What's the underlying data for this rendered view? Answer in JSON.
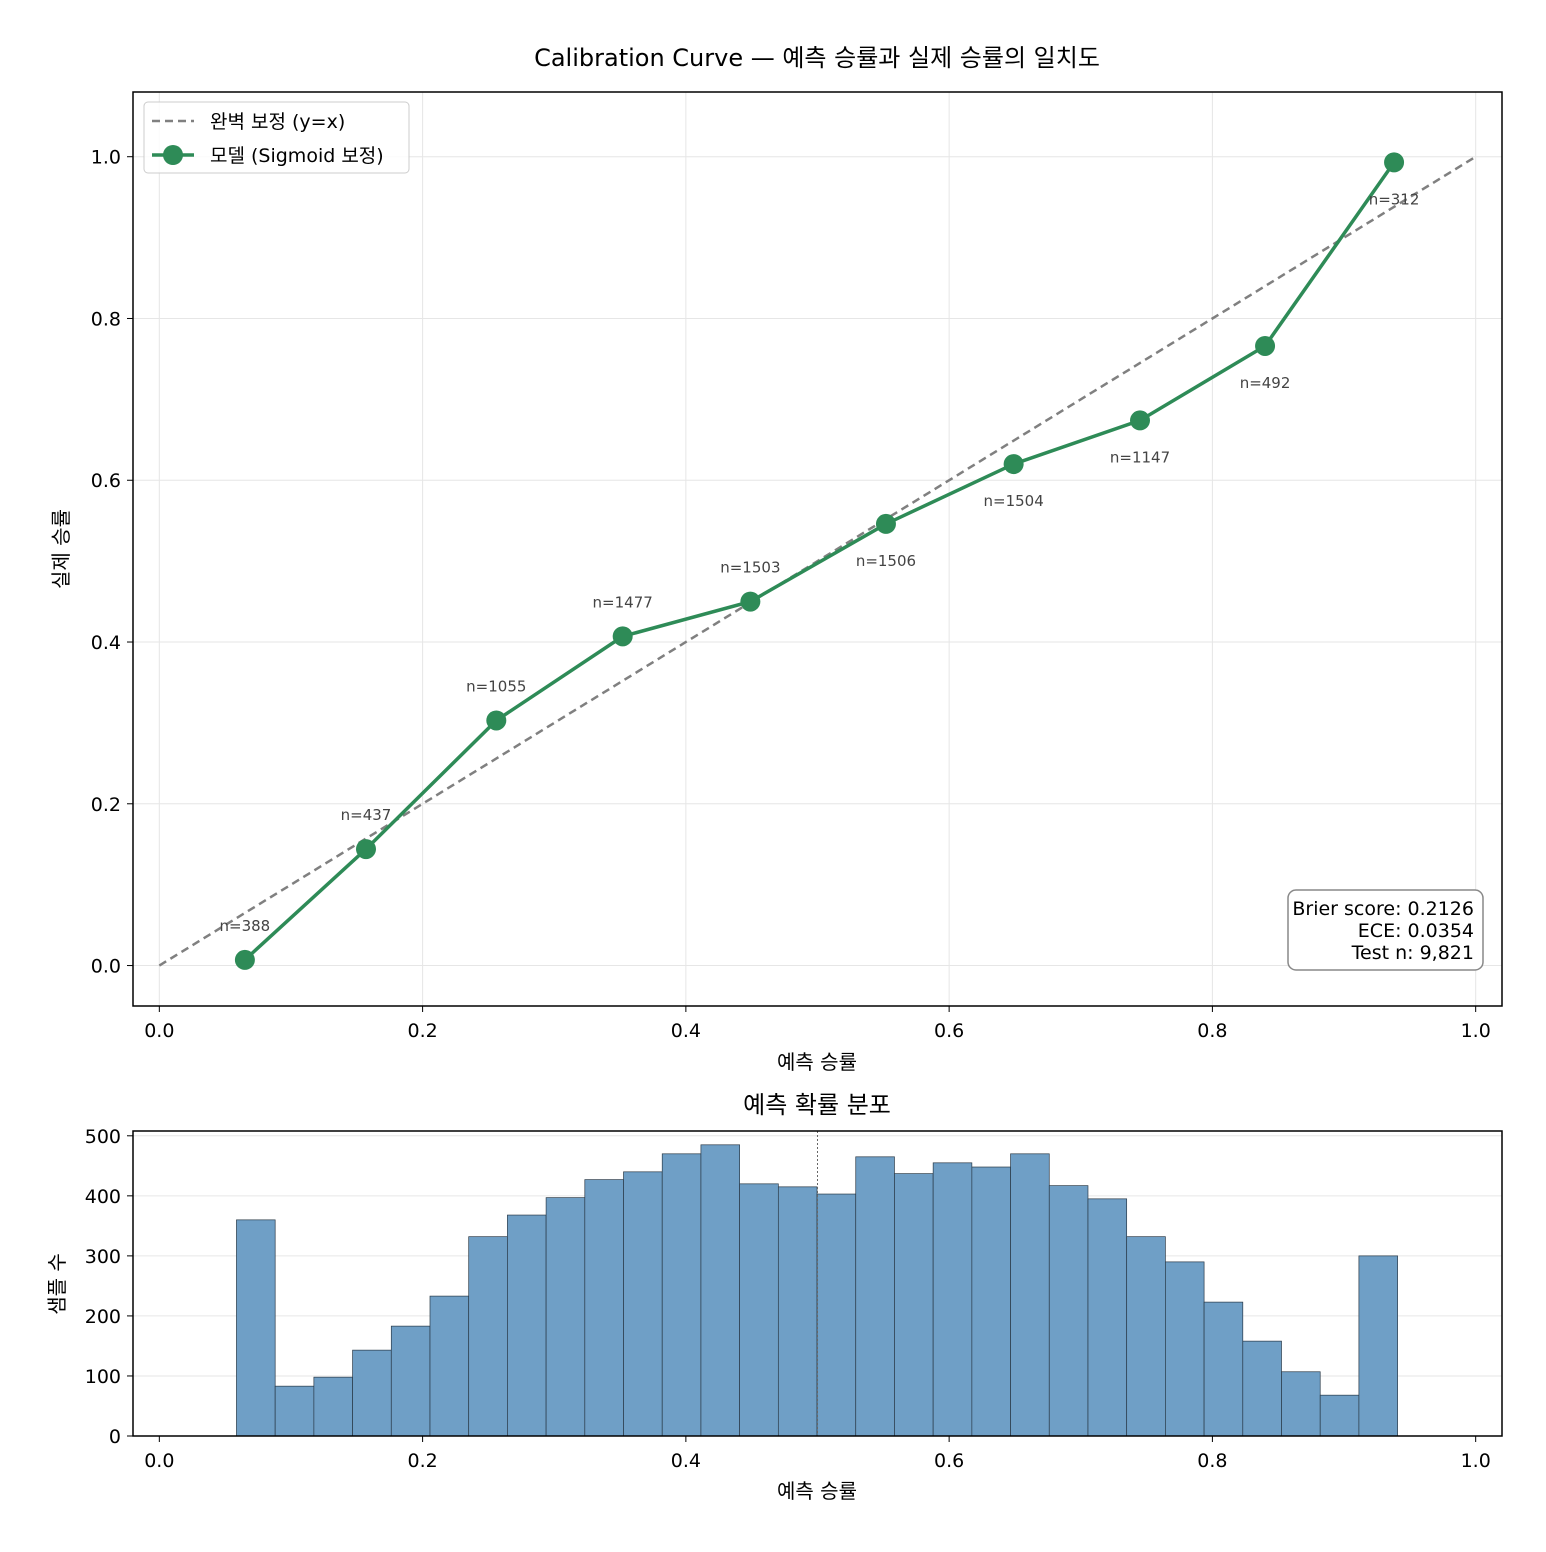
{
  "chart_data": [
    {
      "type": "line",
      "title": "Calibration Curve — 예측 승률과 실제 승률의 일치도",
      "xlabel": "예측 승률",
      "ylabel": "실제 승률",
      "xlim": [
        -0.02,
        1.02
      ],
      "ylim": [
        -0.05,
        1.08
      ],
      "xticks": [
        "0.0",
        "0.2",
        "0.4",
        "0.6",
        "0.8",
        "1.0"
      ],
      "yticks": [
        "0.0",
        "0.2",
        "0.4",
        "0.6",
        "0.8",
        "1.0"
      ],
      "grid": true,
      "legend_position": "top-left",
      "series": [
        {
          "name": "완벽 보정 (y=x)",
          "style": "dashed",
          "color": "#808080",
          "x": [
            0,
            1
          ],
          "y": [
            0,
            1
          ]
        },
        {
          "name": "모델 (Sigmoid 보정)",
          "style": "solid-marker",
          "color": "#2e8b57",
          "x": [
            0.065,
            0.157,
            0.256,
            0.352,
            0.449,
            0.552,
            0.649,
            0.745,
            0.84,
            0.938
          ],
          "y": [
            0.007,
            0.144,
            0.303,
            0.407,
            0.45,
            0.546,
            0.62,
            0.674,
            0.766,
            0.993
          ],
          "labels": [
            "n=388",
            "n=437",
            "n=1055",
            "n=1477",
            "n=1503",
            "n=1506",
            "n=1504",
            "n=1147",
            "n=492",
            "n=312"
          ]
        }
      ],
      "stats_box": [
        "Brier score: 0.2126",
        "ECE: 0.0354",
        "Test n: 9,821"
      ]
    },
    {
      "type": "bar",
      "subtype": "histogram",
      "title": "예측 확률 분포",
      "xlabel": "예측 승률",
      "ylabel": "샘플 수",
      "xlim": [
        -0.02,
        1.02
      ],
      "ylim": [
        0,
        508
      ],
      "xticks": [
        "0.0",
        "0.2",
        "0.4",
        "0.6",
        "0.8",
        "1.0"
      ],
      "yticks": [
        "0",
        "100",
        "200",
        "300",
        "400",
        "500"
      ],
      "grid": true,
      "color": "#6f9fc6",
      "bin_range": [
        0.0586,
        0.9407
      ],
      "counts": [
        360,
        83,
        98,
        143,
        183,
        233,
        332,
        368,
        397,
        427,
        440,
        470,
        485,
        420,
        415,
        403,
        465,
        437,
        455,
        448,
        470,
        417,
        395,
        332,
        290,
        223,
        158,
        107,
        68,
        300
      ],
      "reference_line_x": 0.5
    }
  ]
}
